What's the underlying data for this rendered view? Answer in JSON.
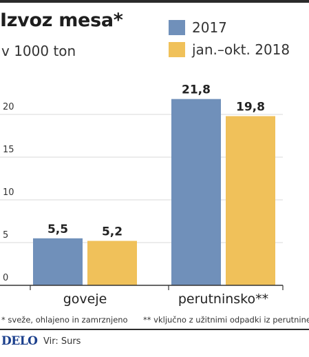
{
  "header": {
    "title": "Izvoz mesa*",
    "subtitle": "v 1000 ton"
  },
  "colors": {
    "series_2017": "#7090ba",
    "series_2018": "#f0c15a",
    "grid": "#d9d9d9",
    "axis": "#333333",
    "text": "#222222"
  },
  "chart_data": {
    "type": "bar",
    "title": "Izvoz mesa*",
    "subtitle": "v 1000 ton",
    "xlabel": "",
    "ylabel": "",
    "categories": [
      "goveje",
      "perutninsko**"
    ],
    "series": [
      {
        "name": "2017",
        "values": [
          5.5,
          21.8
        ],
        "labels": [
          "5,5",
          "21,8"
        ]
      },
      {
        "name": "jan.–okt. 2018",
        "values": [
          5.2,
          19.8
        ],
        "labels": [
          "5,2",
          "19,8"
        ]
      }
    ],
    "ylim": [
      0,
      25
    ],
    "yticks": [
      0,
      5,
      10,
      15,
      20
    ],
    "ytick_labels": [
      "0",
      "5",
      "10",
      "15",
      "20"
    ],
    "grid": true,
    "legend_position": "top-right"
  },
  "footnotes": {
    "note1": "* sveže, ohlajeno in zamrznjeno",
    "note2": "** vključno z užitnimi odpadki iz perutnine"
  },
  "footer": {
    "logo": "DELO",
    "source": "Vir: Surs"
  }
}
